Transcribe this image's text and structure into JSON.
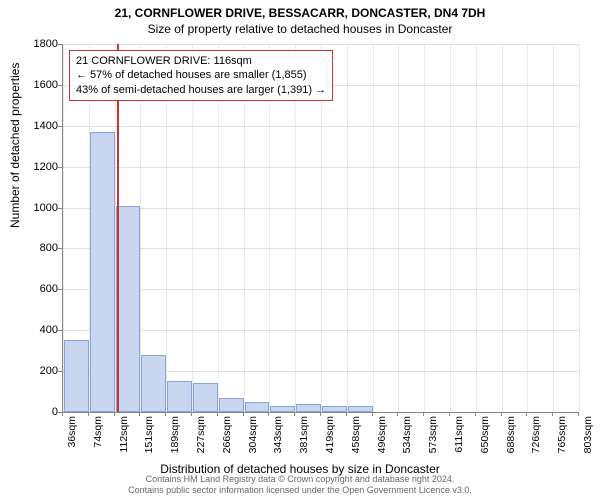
{
  "titles": {
    "main": "21, CORNFLOWER DRIVE, BESSACARR, DONCASTER, DN4 7DH",
    "sub": "Size of property relative to detached houses in Doncaster"
  },
  "axes": {
    "y_label": "Number of detached properties",
    "x_label": "Distribution of detached houses by size in Doncaster"
  },
  "chart": {
    "type": "histogram",
    "y_min": 0,
    "y_max": 1800,
    "y_tick_step": 200,
    "x_ticks": [
      "36sqm",
      "74sqm",
      "112sqm",
      "151sqm",
      "189sqm",
      "227sqm",
      "266sqm",
      "304sqm",
      "343sqm",
      "381sqm",
      "419sqm",
      "458sqm",
      "496sqm",
      "534sqm",
      "573sqm",
      "611sqm",
      "650sqm",
      "688sqm",
      "726sqm",
      "765sqm",
      "803sqm"
    ],
    "bar_values": [
      350,
      1370,
      1010,
      280,
      150,
      140,
      70,
      50,
      30,
      40,
      30,
      30,
      0,
      0,
      0,
      0,
      0,
      0,
      0,
      0
    ],
    "bar_fill": "#c9d6f0",
    "bar_stroke": "#8aa4d6",
    "background_color": "#ffffff",
    "grid_color": "#888888",
    "ref_line": {
      "value_sqm": 116,
      "color": "#cc3333"
    }
  },
  "callout": {
    "line1": "21 CORNFLOWER DRIVE: 116sqm",
    "line2": "← 57% of detached houses are smaller (1,855)",
    "line3": "43% of semi-detached houses are larger (1,391) →",
    "border_color": "#cc3333"
  },
  "footer": {
    "line1": "Contains HM Land Registry data © Crown copyright and database right 2024.",
    "line2": "Contains public sector information licensed under the Open Government Licence v3.0."
  },
  "fonts": {
    "title_size_pt": 12,
    "axis_label_size_pt": 12,
    "tick_size_pt": 11,
    "callout_size_pt": 11,
    "footer_size_pt": 9
  }
}
